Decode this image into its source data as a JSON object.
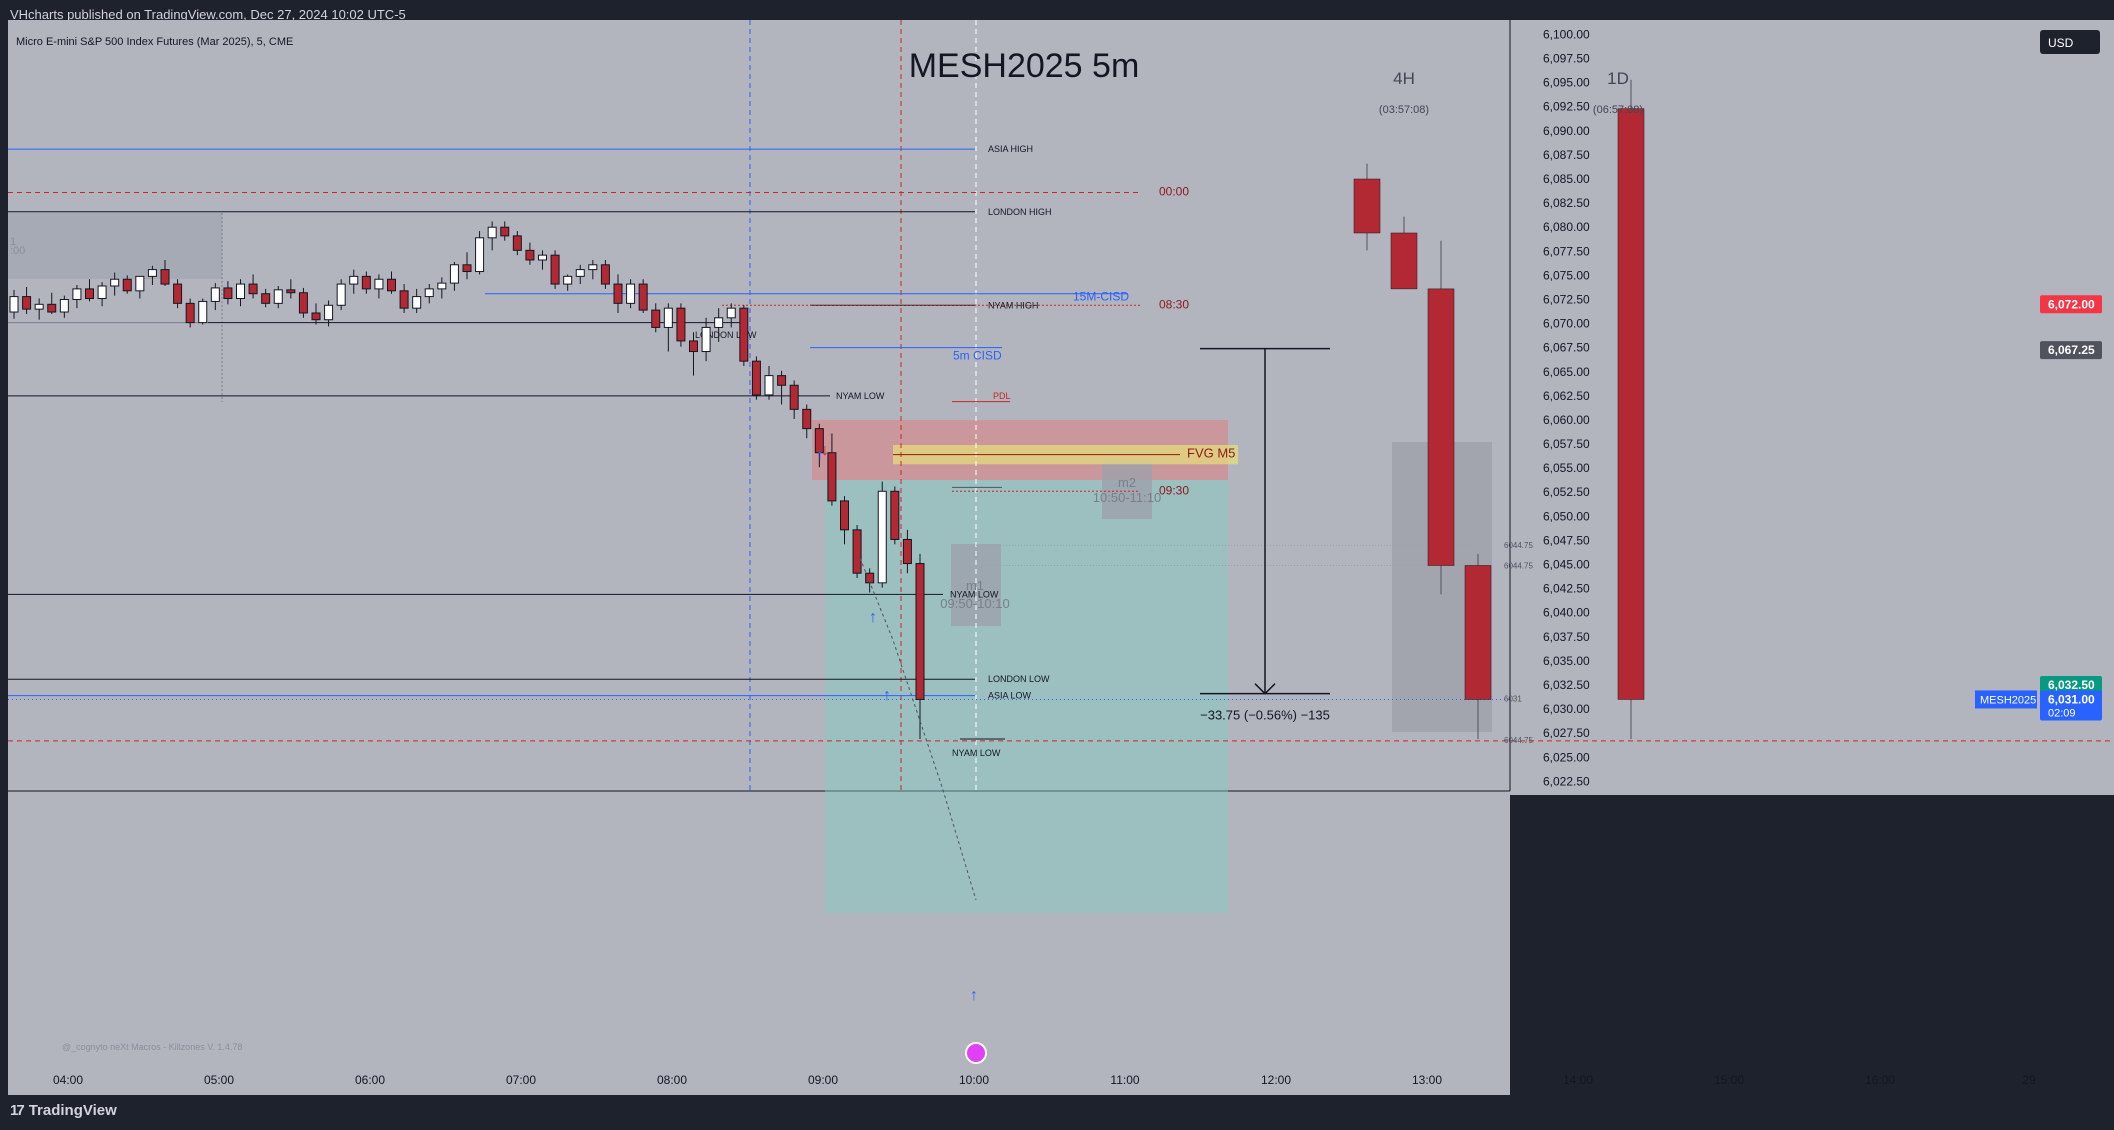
{
  "header": {
    "published": "VHcharts published on TradingView.com, Dec 27, 2024 10:02 UTC-5"
  },
  "footer": {
    "brand": "TradingView"
  },
  "colors": {
    "bg_plot": "#b2b5be",
    "bull": "#ffffff",
    "bear": "#b22833",
    "blue_line": "#2962ff",
    "red_dash": "#c62828",
    "fvg": "#e8e07a",
    "short_zone": "#e57373",
    "target_zone": "#80cbc4"
  },
  "chart_data": {
    "type": "candlestick",
    "symbol_desc": "Micro E-mini S&P 500 Index Futures (Mar 2025), 5, CME",
    "watermark": "MESH2025 5m",
    "currency": "USD",
    "x_ticks": [
      "04:00",
      "05:00",
      "06:00",
      "07:00",
      "08:00",
      "09:00",
      "10:00",
      "11:00",
      "12:00",
      "13:00",
      "14:00",
      "15:00",
      "16:00",
      "29"
    ],
    "y_ticks": [
      "6,100.00",
      "6,097.50",
      "6,095.00",
      "6,092.50",
      "6,090.00",
      "6,087.50",
      "6,085.00",
      "6,082.50",
      "6,080.00",
      "6,077.50",
      "6,075.00",
      "6,072.50",
      "6,070.00",
      "6,067.50",
      "6,065.00",
      "6,062.50",
      "6,060.00",
      "6,057.50",
      "6,055.00",
      "6,052.50",
      "6,050.00",
      "6,047.50",
      "6,045.00",
      "6,042.50",
      "6,040.00",
      "6,037.50",
      "6,035.00",
      "6,032.50",
      "6,030.00",
      "6,027.50",
      "6,025.00",
      "6,022.50"
    ],
    "ylim": [
      6021.5,
      6101.5
    ],
    "candles_5m": [
      [
        6071.2,
        6073.5,
        6070.5,
        6072.8
      ],
      [
        6072.8,
        6073.8,
        6071.0,
        6071.5
      ],
      [
        6071.5,
        6072.6,
        6070.4,
        6072.0
      ],
      [
        6072.0,
        6073.2,
        6071.0,
        6071.2
      ],
      [
        6071.2,
        6072.9,
        6070.6,
        6072.5
      ],
      [
        6072.5,
        6074.0,
        6071.6,
        6073.6
      ],
      [
        6073.6,
        6074.6,
        6072.3,
        6072.6
      ],
      [
        6072.6,
        6074.3,
        6071.8,
        6073.9
      ],
      [
        6073.9,
        6075.3,
        6072.9,
        6074.6
      ],
      [
        6074.6,
        6075.0,
        6073.1,
        6073.4
      ],
      [
        6073.4,
        6074.9,
        6072.6,
        6074.9
      ],
      [
        6074.9,
        6076.0,
        6074.0,
        6075.6
      ],
      [
        6075.6,
        6076.6,
        6073.9,
        6074.1
      ],
      [
        6074.1,
        6074.6,
        6071.6,
        6072.1
      ],
      [
        6072.1,
        6072.6,
        6069.6,
        6070.1
      ],
      [
        6070.1,
        6072.6,
        6069.9,
        6072.3
      ],
      [
        6072.3,
        6074.2,
        6071.4,
        6073.7
      ],
      [
        6073.7,
        6074.4,
        6072.0,
        6072.6
      ],
      [
        6072.6,
        6074.6,
        6071.8,
        6074.1
      ],
      [
        6074.1,
        6075.1,
        6072.6,
        6073.1
      ],
      [
        6073.1,
        6073.6,
        6071.7,
        6072.1
      ],
      [
        6072.1,
        6073.9,
        6071.6,
        6073.5
      ],
      [
        6073.5,
        6074.6,
        6072.6,
        6073.2
      ],
      [
        6073.2,
        6073.7,
        6070.6,
        6071.1
      ],
      [
        6071.1,
        6072.1,
        6069.9,
        6070.4
      ],
      [
        6070.4,
        6072.4,
        6069.7,
        6071.9
      ],
      [
        6071.9,
        6074.6,
        6071.4,
        6074.1
      ],
      [
        6074.1,
        6075.6,
        6073.1,
        6074.9
      ],
      [
        6074.9,
        6075.4,
        6073.1,
        6073.6
      ],
      [
        6073.6,
        6075.1,
        6072.6,
        6074.6
      ],
      [
        6074.6,
        6075.4,
        6073.1,
        6073.4
      ],
      [
        6073.4,
        6074.1,
        6071.1,
        6071.6
      ],
      [
        6071.6,
        6073.6,
        6071.1,
        6072.8
      ],
      [
        6072.8,
        6074.1,
        6072.1,
        6073.6
      ],
      [
        6073.6,
        6074.8,
        6072.6,
        6074.2
      ],
      [
        6074.2,
        6076.4,
        6073.4,
        6076.1
      ],
      [
        6076.1,
        6077.4,
        6074.6,
        6075.4
      ],
      [
        6075.4,
        6079.6,
        6075.1,
        6078.9
      ],
      [
        6078.9,
        6080.6,
        6077.6,
        6080.0
      ],
      [
        6080.0,
        6080.6,
        6078.6,
        6079.1
      ],
      [
        6079.1,
        6079.6,
        6077.1,
        6077.6
      ],
      [
        6077.6,
        6078.4,
        6076.1,
        6076.6
      ],
      [
        6076.6,
        6077.6,
        6075.6,
        6077.1
      ],
      [
        6077.1,
        6077.6,
        6073.6,
        6074.1
      ],
      [
        6074.1,
        6075.1,
        6073.4,
        6074.9
      ],
      [
        6074.9,
        6076.1,
        6074.1,
        6075.6
      ],
      [
        6075.6,
        6076.6,
        6074.6,
        6076.1
      ],
      [
        6076.1,
        6076.6,
        6073.6,
        6074.1
      ],
      [
        6074.1,
        6075.1,
        6071.1,
        6072.1
      ],
      [
        6072.1,
        6074.6,
        6071.6,
        6074.1
      ],
      [
        6074.1,
        6074.6,
        6071.1,
        6071.4
      ],
      [
        6071.4,
        6072.1,
        6069.1,
        6069.6
      ],
      [
        6069.6,
        6072.1,
        6067.1,
        6071.6
      ],
      [
        6071.6,
        6072.1,
        6067.6,
        6068.2
      ],
      [
        6068.2,
        6069.1,
        6064.6,
        6067.1
      ],
      [
        6067.1,
        6070.6,
        6066.1,
        6069.6
      ],
      [
        6069.6,
        6071.6,
        6068.1,
        6070.6
      ],
      [
        6070.6,
        6072.1,
        6069.6,
        6071.6
      ],
      [
        6071.6,
        6071.9,
        6065.6,
        6066.1
      ],
      [
        6066.1,
        6066.6,
        6062.1,
        6062.6
      ],
      [
        6062.6,
        6065.6,
        6062.1,
        6064.6
      ],
      [
        6064.6,
        6065.1,
        6061.6,
        6063.6
      ],
      [
        6063.6,
        6064.1,
        6060.1,
        6061.1
      ],
      [
        6061.1,
        6061.6,
        6058.1,
        6059.1
      ],
      [
        6059.1,
        6059.6,
        6055.1,
        6056.6
      ],
      [
        6056.6,
        6058.6,
        6051.1,
        6051.6
      ],
      [
        6051.6,
        6052.1,
        6047.1,
        6048.6
      ],
      [
        6048.6,
        6049.1,
        6043.6,
        6044.1
      ],
      [
        6044.1,
        6044.6,
        6042.1,
        6043.1
      ],
      [
        6043.1,
        6053.6,
        6042.6,
        6052.6
      ],
      [
        6052.6,
        6053.1,
        6047.1,
        6047.6
      ],
      [
        6047.6,
        6048.6,
        6044.1,
        6045.1
      ],
      [
        6045.1,
        6046.1,
        6026.9,
        6031.0
      ]
    ],
    "htf_candles": [
      {
        "tf": "4H",
        "ohlc": [
          [
            6085.0,
            6086.6,
            6077.6,
            6079.4
          ],
          [
            6079.4,
            6081.1,
            6073.6,
            6073.6
          ],
          [
            6073.6,
            6078.6,
            6041.9,
            6044.9
          ],
          [
            6044.9,
            6046.1,
            6026.9,
            6031.0
          ]
        ]
      },
      {
        "tf": "1D",
        "ohlc": [
          [
            6092.3,
            6095.3,
            6026.9,
            6031.0
          ]
        ]
      }
    ],
    "timeframe_labels": [
      {
        "label": "4H",
        "countdown": "(03:57:08)"
      },
      {
        "label": "1D",
        "countdown": "(06:57:08)"
      }
    ],
    "levels": {
      "asia_high": {
        "label": "ASIA HIGH",
        "price": 6088.1
      },
      "midnight_open": {
        "label": "00:00",
        "price": 6083.6
      },
      "london_high": {
        "label": "LONDON HIGH",
        "price": 6081.6
      },
      "cisd_15m": {
        "label": "15M-CISD",
        "price": 6073.1
      },
      "nyam_high": {
        "label": "NYAM HIGH",
        "price": 6071.9
      },
      "london_low_early": {
        "label": "LONDON LOW",
        "price": 6070.1
      },
      "open_0830": {
        "label": "08:30",
        "price": 6071.9
      },
      "cisd_5m": {
        "label": "5m CISD",
        "price": 6067.5
      },
      "nyam_low_1": {
        "label": "NYAM LOW",
        "price": 6062.5
      },
      "pdl": {
        "label": "PDL",
        "price": 6061.9
      },
      "fvg_m5": {
        "label": "FVG M5",
        "top": 6057.4,
        "bottom": 6055.4
      },
      "open_0930": {
        "label": "09:30",
        "price": 6052.6
      },
      "nyam_low_2": {
        "label": "NYAM LOW",
        "price": 6041.9
      },
      "london_low": {
        "label": "LONDON LOW",
        "price": 6033.1
      },
      "asia_low": {
        "label": "ASIA LOW",
        "price": 6031.4
      },
      "nyam_low_3": {
        "label": "NYAM LOW",
        "price": 6026.9
      },
      "lower_dash": {
        "price": 6026.7
      }
    },
    "small_levels": [
      "6044.75",
      "6044.75",
      "6031",
      "6044.75"
    ],
    "macro_boxes": [
      {
        "name": "m1",
        "time": "09:50-10:10"
      },
      {
        "name": "m2",
        "time": "10:50-11:10"
      }
    ],
    "measure": {
      "text": "−33.75 (−0.56%) −135",
      "from": 6067.4,
      "to": 6031.6
    },
    "price_labels": [
      {
        "text": "6,072.00",
        "price": 6072.0,
        "color": "#f23645"
      },
      {
        "text": "6,067.25",
        "price": 6067.25,
        "color": "#50535e"
      },
      {
        "text": "6,032.50",
        "price": 6032.5,
        "color": "#089981"
      },
      {
        "text": "6,031.00",
        "sub": "02:09",
        "price": 6031.0,
        "color": "#2962ff"
      }
    ],
    "symbol_tag": "MESH2025",
    "indicator_note": "@_cognyto neXt Macros - Killzones V. 1.4.78"
  }
}
